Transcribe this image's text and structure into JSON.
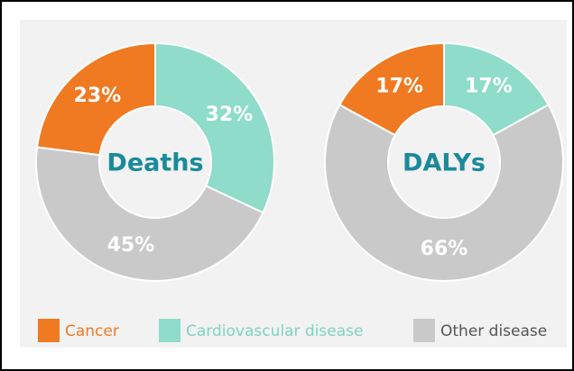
{
  "chart_data": [
    {
      "type": "pie",
      "title": "Deaths",
      "categories": [
        "Cancer",
        "Cardiovascular disease",
        "Other disease"
      ],
      "values": [
        23,
        32,
        45
      ],
      "value_labels": [
        "23%",
        "32%",
        "45%"
      ],
      "colors": [
        "#f07a22",
        "#8edcc9",
        "#c9c9c9"
      ]
    },
    {
      "type": "pie",
      "title": "DALYs",
      "categories": [
        "Cancer",
        "Cardiovascular disease",
        "Other disease"
      ],
      "values": [
        17,
        17,
        66
      ],
      "value_labels": [
        "17%",
        "17%",
        "66%"
      ],
      "colors": [
        "#f07a22",
        "#8edcc9",
        "#c9c9c9"
      ]
    }
  ]
}
